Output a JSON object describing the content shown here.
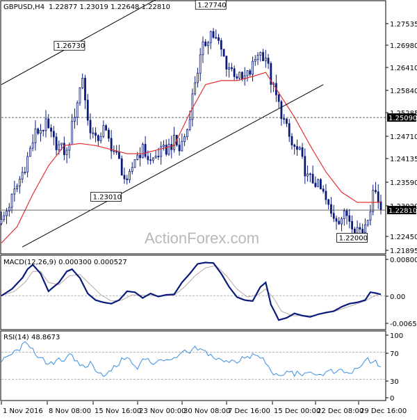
{
  "header": {
    "symbol": "GBPUSD,H4",
    "ohlc": "1.22877 1.23019 1.22648 1.22810"
  },
  "watermark": "ActionForex.com",
  "colors": {
    "candles": "#0a1a7a",
    "ma_line": "#e53030",
    "channel_lines": "#000000",
    "hline": "#333333",
    "macd_main": "#0a1a7a",
    "macd_signal": "#b8a6a6",
    "rsi": "#3a8ee0",
    "grid": "#999999",
    "price_label_bg": "#000000",
    "price_label_fg": "#ffffff"
  },
  "chart_data": [
    {
      "type": "candlestick",
      "panel": "price",
      "title": "GBPUSD,H4",
      "ylim": [
        1.2175,
        1.2795
      ],
      "y_ticks": [
        "1.27535",
        "1.26980",
        "1.26410",
        "1.25840",
        "1.25285",
        "1.24710",
        "1.24135",
        "1.23590",
        "1.23020",
        "1.22450",
        "1.21895"
      ],
      "x_ticks": [
        "1 Nov 2016",
        "8 Nov 08:00",
        "15 Nov 16:00",
        "23 Nov 00:00",
        "30 Nov 08:00",
        "7 Dec 16:00",
        "15 Dec 00:00",
        "22 Dec 08:00",
        "29 Dec 16:00"
      ],
      "close_path": [
        [
          0,
          1.225
        ],
        [
          6,
          1.234
        ],
        [
          9,
          1.239
        ],
        [
          13,
          1.247
        ],
        [
          17,
          1.249
        ],
        [
          20,
          1.245
        ],
        [
          25,
          1.242
        ],
        [
          28,
          1.252
        ],
        [
          31,
          1.261
        ],
        [
          33,
          1.25
        ],
        [
          36,
          1.245
        ],
        [
          39,
          1.248
        ],
        [
          42,
          1.244
        ],
        [
          45,
          1.24
        ],
        [
          48,
          1.234
        ],
        [
          51,
          1.241
        ],
        [
          54,
          1.243
        ],
        [
          57,
          1.24
        ],
        [
          60,
          1.242
        ],
        [
          63,
          1.243
        ],
        [
          66,
          1.245
        ],
        [
          68,
          1.243
        ],
        [
          71,
          1.248
        ],
        [
          74,
          1.26
        ],
        [
          77,
          1.268
        ],
        [
          80,
          1.272
        ],
        [
          83,
          1.269
        ],
        [
          86,
          1.264
        ],
        [
          89,
          1.262
        ],
        [
          92,
          1.26
        ],
        [
          95,
          1.262
        ],
        [
          98,
          1.267
        ],
        [
          101,
          1.266
        ],
        [
          103,
          1.26
        ],
        [
          106,
          1.254
        ],
        [
          108,
          1.25
        ],
        [
          111,
          1.244
        ],
        [
          114,
          1.242
        ],
        [
          117,
          1.236
        ],
        [
          120,
          1.235
        ],
        [
          123,
          1.232
        ],
        [
          126,
          1.227
        ],
        [
          129,
          1.226
        ],
        [
          132,
          1.227
        ],
        [
          135,
          1.224
        ],
        [
          138,
          1.223
        ],
        [
          141,
          1.229
        ],
        [
          143,
          1.234
        ],
        [
          145,
          1.2281
        ]
      ],
      "ma_series_name": "",
      "ma_path": [
        [
          0,
          1.22
        ],
        [
          6,
          1.224
        ],
        [
          12,
          1.232
        ],
        [
          18,
          1.239
        ],
        [
          24,
          1.244
        ],
        [
          30,
          1.2445
        ],
        [
          36,
          1.244
        ],
        [
          42,
          1.243
        ],
        [
          48,
          1.242
        ],
        [
          54,
          1.242
        ],
        [
          60,
          1.243
        ],
        [
          66,
          1.244
        ],
        [
          72,
          1.252
        ],
        [
          78,
          1.259
        ],
        [
          84,
          1.26
        ],
        [
          90,
          1.26
        ],
        [
          96,
          1.261
        ],
        [
          101,
          1.262
        ],
        [
          106,
          1.257
        ],
        [
          112,
          1.251
        ],
        [
          118,
          1.244
        ],
        [
          124,
          1.2375
        ],
        [
          130,
          1.2325
        ],
        [
          136,
          1.23
        ],
        [
          141,
          1.23
        ],
        [
          145,
          1.23
        ]
      ],
      "annotations": [
        {
          "label": "1.26730",
          "x": 26,
          "y": 1.2673
        },
        {
          "label": "1.23010",
          "x": 40,
          "y": 1.2301
        },
        {
          "label": "1.27740",
          "x": 80,
          "y": 1.2774
        },
        {
          "label": "1.22000",
          "x": 134,
          "y": 1.22
        }
      ],
      "channel_lines": [
        {
          "from": [
            0,
            1.259
          ],
          "to": [
            62,
            1.281
          ]
        },
        {
          "from": [
            8,
            1.219
          ],
          "to": [
            123,
            1.259
          ]
        }
      ],
      "hlines": [
        {
          "value": 1.2509,
          "label": "1.25090",
          "style": "dashed"
        },
        {
          "value": 1.2281,
          "label": "1.22810",
          "style": "solid"
        }
      ]
    },
    {
      "type": "line",
      "panel": "macd",
      "title": "MACD(12,26,9) 0.000300 0.000527",
      "ylim": [
        -0.0075,
        0.009
      ],
      "y_ticks": [
        "0.008001",
        "0.00",
        "-0.006594"
      ],
      "series": [
        {
          "name": "",
          "path": [
            [
              0,
              0.0
            ],
            [
              4,
              0.0015
            ],
            [
              8,
              0.004
            ],
            [
              10,
              0.006
            ],
            [
              12,
              0.007
            ],
            [
              15,
              0.005
            ],
            [
              18,
              0.001
            ],
            [
              22,
              0.003
            ],
            [
              25,
              0.0055
            ],
            [
              27,
              0.006
            ],
            [
              30,
              0.004
            ],
            [
              33,
              0.0005
            ],
            [
              36,
              -0.001
            ],
            [
              39,
              -0.0015
            ],
            [
              42,
              -0.0018
            ],
            [
              45,
              -0.001
            ],
            [
              48,
              0.001
            ],
            [
              51,
              0.0008
            ],
            [
              54,
              -0.0005
            ],
            [
              57,
              0.0005
            ],
            [
              60,
              -0.0002
            ],
            [
              63,
              0.0002
            ],
            [
              66,
              0.0003
            ],
            [
              69,
              0.003
            ],
            [
              72,
              0.005
            ],
            [
              75,
              0.0072
            ],
            [
              78,
              0.0075
            ],
            [
              81,
              0.0074
            ],
            [
              84,
              0.005
            ],
            [
              87,
              0.002
            ],
            [
              90,
              -0.0003
            ],
            [
              93,
              -0.001
            ],
            [
              96,
              -0.0012
            ],
            [
              99,
              0.002
            ],
            [
              101,
              0.003
            ],
            [
              103,
              -0.002
            ],
            [
              106,
              -0.0055
            ],
            [
              109,
              -0.005
            ],
            [
              112,
              -0.004
            ],
            [
              115,
              -0.0045
            ],
            [
              118,
              -0.0048
            ],
            [
              121,
              -0.0042
            ],
            [
              124,
              -0.0038
            ],
            [
              127,
              -0.0035
            ],
            [
              130,
              -0.0025
            ],
            [
              133,
              -0.0018
            ],
            [
              136,
              -0.0015
            ],
            [
              139,
              -0.001
            ],
            [
              141,
              0.0008
            ],
            [
              143,
              0.0006
            ],
            [
              145,
              0.0003
            ]
          ]
        },
        {
          "name": "",
          "path": [
            [
              0,
              0.0
            ],
            [
              5,
              0.001
            ],
            [
              9,
              0.003
            ],
            [
              12,
              0.0055
            ],
            [
              15,
              0.0055
            ],
            [
              18,
              0.003
            ],
            [
              22,
              0.0025
            ],
            [
              26,
              0.0045
            ],
            [
              30,
              0.0048
            ],
            [
              34,
              0.0025
            ],
            [
              38,
              0.0002
            ],
            [
              42,
              -0.0012
            ],
            [
              46,
              -0.001
            ],
            [
              50,
              0.0002
            ],
            [
              54,
              0.0001
            ],
            [
              58,
              0.0
            ],
            [
              62,
              0.0
            ],
            [
              66,
              0.0001
            ],
            [
              70,
              0.002
            ],
            [
              74,
              0.0045
            ],
            [
              78,
              0.0063
            ],
            [
              82,
              0.0068
            ],
            [
              86,
              0.0045
            ],
            [
              90,
              0.0015
            ],
            [
              94,
              -0.0003
            ],
            [
              98,
              0.0002
            ],
            [
              101,
              0.0015
            ],
            [
              104,
              -0.0005
            ],
            [
              107,
              -0.0035
            ],
            [
              111,
              -0.0045
            ],
            [
              115,
              -0.0045
            ],
            [
              119,
              -0.0045
            ],
            [
              123,
              -0.004
            ],
            [
              127,
              -0.0036
            ],
            [
              131,
              -0.0028
            ],
            [
              135,
              -0.002
            ],
            [
              139,
              -0.0012
            ],
            [
              142,
              -0.0002
            ],
            [
              145,
              0.000527
            ]
          ]
        }
      ]
    },
    {
      "type": "line",
      "panel": "rsi",
      "title": "RSI(14) 48.8673",
      "ylim": [
        0,
        100
      ],
      "y_ticks": [
        "100",
        "70",
        "30",
        "0"
      ],
      "hlines": [
        70,
        30
      ],
      "series": [
        {
          "name": "",
          "path": [
            [
              0,
              55
            ],
            [
              3,
              65
            ],
            [
              6,
              72
            ],
            [
              9,
              82
            ],
            [
              12,
              78
            ],
            [
              14,
              60
            ],
            [
              16,
              58
            ],
            [
              18,
              50
            ],
            [
              20,
              55
            ],
            [
              22,
              62
            ],
            [
              24,
              58
            ],
            [
              26,
              70
            ],
            [
              28,
              55
            ],
            [
              30,
              52
            ],
            [
              32,
              48
            ],
            [
              34,
              54
            ],
            [
              36,
              45
            ],
            [
              38,
              40
            ],
            [
              40,
              35
            ],
            [
              42,
              44
            ],
            [
              44,
              50
            ],
            [
              46,
              58
            ],
            [
              48,
              65
            ],
            [
              50,
              52
            ],
            [
              52,
              45
            ],
            [
              54,
              58
            ],
            [
              56,
              62
            ],
            [
              58,
              52
            ],
            [
              60,
              60
            ],
            [
              62,
              55
            ],
            [
              64,
              62
            ],
            [
              66,
              58
            ],
            [
              68,
              65
            ],
            [
              70,
              70
            ],
            [
              72,
              68
            ],
            [
              74,
              75
            ],
            [
              76,
              73
            ],
            [
              78,
              70
            ],
            [
              80,
              66
            ],
            [
              82,
              60
            ],
            [
              84,
              58
            ],
            [
              86,
              55
            ],
            [
              88,
              60
            ],
            [
              90,
              56
            ],
            [
              92,
              62
            ],
            [
              94,
              60
            ],
            [
              96,
              66
            ],
            [
              98,
              63
            ],
            [
              100,
              60
            ],
            [
              102,
              48
            ],
            [
              104,
              40
            ],
            [
              106,
              32
            ],
            [
              108,
              38
            ],
            [
              110,
              42
            ],
            [
              112,
              38
            ],
            [
              114,
              40
            ],
            [
              116,
              36
            ],
            [
              118,
              38
            ],
            [
              120,
              40
            ],
            [
              122,
              36
            ],
            [
              124,
              40
            ],
            [
              126,
              42
            ],
            [
              128,
              38
            ],
            [
              130,
              44
            ],
            [
              132,
              38
            ],
            [
              134,
              40
            ],
            [
              136,
              45
            ],
            [
              138,
              50
            ],
            [
              140,
              62
            ],
            [
              142,
              52
            ],
            [
              143,
              55
            ],
            [
              145,
              48.8673
            ]
          ]
        }
      ]
    }
  ]
}
